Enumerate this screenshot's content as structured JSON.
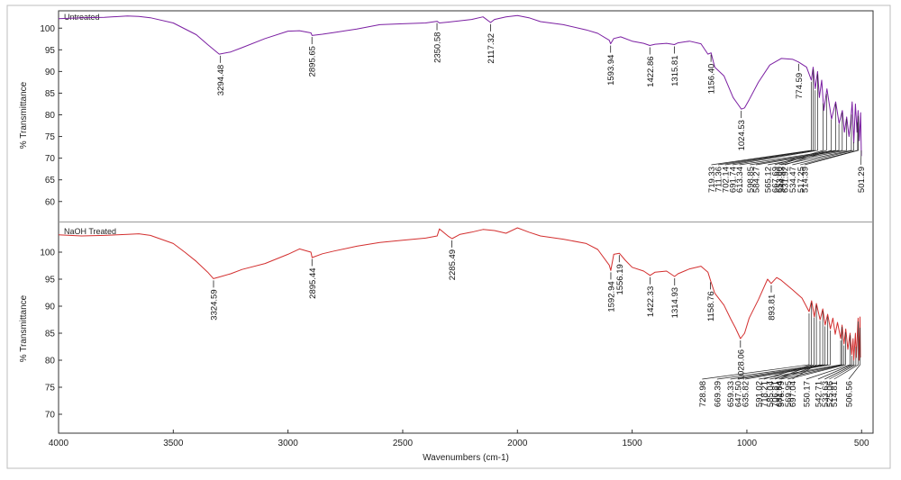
{
  "chart_data": [
    {
      "type": "line",
      "legend": "Untreated",
      "ylabel": "% Transmittance",
      "xlim": [
        4000,
        450
      ],
      "ylim": [
        56,
        104
      ],
      "yticks": [
        60,
        65,
        70,
        75,
        80,
        85,
        90,
        95,
        100
      ],
      "color": "#7b1fa2",
      "series": [
        {
          "name": "Untreated",
          "x": [
            4000,
            3900,
            3800,
            3700,
            3650,
            3600,
            3500,
            3400,
            3350,
            3300,
            3250,
            3200,
            3100,
            3000,
            2950,
            2900,
            2895,
            2850,
            2800,
            2700,
            2600,
            2500,
            2400,
            2350,
            2340,
            2300,
            2200,
            2150,
            2117,
            2100,
            2050,
            2000,
            1950,
            1900,
            1800,
            1700,
            1650,
            1600,
            1594,
            1580,
            1550,
            1500,
            1450,
            1423,
            1400,
            1350,
            1316,
            1300,
            1250,
            1200,
            1170,
            1156,
            1140,
            1100,
            1060,
            1040,
            1024,
            1010,
            990,
            950,
            900,
            850,
            800,
            775,
            740,
            719,
            711,
            702,
            692,
            684,
            674,
            665,
            651,
            631,
            613,
            598,
            584,
            575,
            565,
            555,
            548,
            541,
            534,
            527,
            520,
            515,
            510,
            504,
            501
          ],
          "y": [
            102.2,
            102.4,
            102.5,
            102.8,
            102.7,
            102.4,
            101.2,
            98.5,
            96.2,
            94.0,
            94.5,
            95.5,
            97.6,
            99.3,
            99.4,
            98.9,
            98.3,
            98.6,
            99.0,
            99.8,
            100.8,
            101.0,
            101.2,
            101.6,
            101.2,
            101.4,
            102.0,
            102.6,
            101.3,
            102.0,
            102.6,
            102.9,
            102.4,
            101.5,
            100.8,
            99.6,
            98.8,
            97.2,
            96.4,
            97.6,
            98.0,
            97.0,
            96.5,
            96.0,
            96.3,
            96.5,
            96.2,
            96.6,
            97.0,
            96.4,
            94.0,
            94.3,
            91.0,
            89.0,
            84.0,
            82.5,
            81.3,
            81.6,
            83.5,
            87.5,
            91.5,
            93.0,
            92.8,
            92.2,
            91.0,
            88.0,
            91.0,
            86.0,
            90.0,
            84.0,
            88.0,
            81.0,
            86.0,
            79.0,
            83.0,
            78.0,
            81.0,
            76.0,
            79.5,
            75.0,
            78.0,
            83.0,
            73.5,
            82.5,
            76.0,
            81.0,
            74.0,
            80.5,
            70.5
          ]
        }
      ],
      "annotations": [
        {
          "label": "3294.48",
          "x": 3294.48,
          "text_x": 3294.48
        },
        {
          "label": "2895.65",
          "x": 2895.65,
          "text_x": 2895.65
        },
        {
          "label": "2350.58",
          "x": 2350.58,
          "text_x": 2350.58
        },
        {
          "label": "2117.32",
          "x": 2117.32,
          "text_x": 2117.32
        },
        {
          "label": "1593.94",
          "x": 1593.94,
          "text_x": 1593.94
        },
        {
          "label": "1422.86",
          "x": 1422.86,
          "text_x": 1422.86
        },
        {
          "label": "1315.81",
          "x": 1315.81,
          "text_x": 1315.81
        },
        {
          "label": "1156.40",
          "x": 1156.4,
          "text_x": 1156.4
        },
        {
          "label": "1024.53",
          "x": 1024.53,
          "text_x": 1024.53
        },
        {
          "label": "774.59",
          "x": 774.59,
          "text_x": 774.59
        },
        {
          "label": "719.33",
          "x": 719.33,
          "text_x": 1155
        },
        {
          "label": "711.36",
          "x": 711.36,
          "text_x": 1125
        },
        {
          "label": "702.14",
          "x": 702.14,
          "text_x": 1095
        },
        {
          "label": "691.74",
          "x": 691.74,
          "text_x": 1063
        },
        {
          "label": "613.34",
          "x": 613.34,
          "text_x": 1033
        },
        {
          "label": "598.85",
          "x": 598.85,
          "text_x": 987
        },
        {
          "label": "584.27",
          "x": 584.27,
          "text_x": 960
        },
        {
          "label": "565.12",
          "x": 565.12,
          "text_x": 909
        },
        {
          "label": "544.53",
          "x": 544.53,
          "text_x": 850
        },
        {
          "label": "534.47",
          "x": 534.47,
          "text_x": 802
        },
        {
          "label": "501.29",
          "x": 501.29,
          "text_x": 503
        },
        {
          "label": "667.69",
          "x": 667.69,
          "text_x": 879
        },
        {
          "label": "653.00",
          "x": 653.0,
          "text_x": 860
        },
        {
          "label": "631.92",
          "x": 631.92,
          "text_x": 835
        },
        {
          "label": "517.25",
          "x": 517.25,
          "text_x": 767
        },
        {
          "label": "514.39",
          "x": 514.39,
          "text_x": 748
        }
      ]
    },
    {
      "type": "line",
      "legend": "NaOH Treated",
      "ylabel": "% Transmittance",
      "xlabel": "Wavenumbers (cm-1)",
      "xlim": [
        4000,
        450
      ],
      "ylim": [
        66.5,
        105
      ],
      "yticks": [
        70,
        75,
        80,
        85,
        90,
        95,
        100
      ],
      "xticks": [
        4000,
        3500,
        3000,
        2500,
        2000,
        1500,
        1000,
        500
      ],
      "color": "#d32f2f",
      "series": [
        {
          "name": "NaOH Treated",
          "x": [
            4000,
            3900,
            3800,
            3700,
            3650,
            3600,
            3500,
            3450,
            3400,
            3350,
            3325,
            3300,
            3250,
            3200,
            3100,
            3000,
            2950,
            2900,
            2895,
            2850,
            2800,
            2700,
            2600,
            2500,
            2400,
            2350,
            2340,
            2300,
            2285,
            2250,
            2200,
            2150,
            2100,
            2050,
            2000,
            1950,
            1900,
            1800,
            1700,
            1650,
            1600,
            1593,
            1580,
            1556,
            1530,
            1500,
            1450,
            1422,
            1400,
            1350,
            1315,
            1300,
            1250,
            1200,
            1170,
            1159,
            1140,
            1100,
            1070,
            1050,
            1028,
            1010,
            990,
            950,
            910,
            894,
            870,
            850,
            800,
            760,
            729,
            718,
            706,
            697,
            681,
            669,
            659,
            648,
            636,
            625,
            615,
            605,
            591,
            585,
            577,
            569,
            560,
            550,
            543,
            537,
            534,
            527,
            523,
            515,
            510,
            507,
            505
          ],
          "y": [
            103.2,
            103.0,
            103.1,
            103.3,
            103.4,
            103.1,
            101.6,
            100.0,
            98.3,
            96.3,
            95.1,
            95.4,
            96.0,
            96.8,
            97.9,
            99.6,
            100.6,
            100.0,
            99.0,
            99.7,
            100.2,
            101.1,
            101.8,
            102.2,
            102.6,
            103.0,
            104.3,
            102.9,
            102.5,
            103.3,
            103.7,
            104.2,
            104.0,
            103.5,
            104.5,
            103.7,
            103.0,
            102.4,
            101.6,
            100.5,
            97.6,
            96.6,
            99.6,
            99.8,
            98.5,
            97.2,
            96.5,
            95.7,
            96.3,
            96.5,
            95.5,
            96.0,
            96.9,
            97.4,
            96.3,
            94.8,
            92.4,
            90.2,
            87.6,
            86.0,
            84.0,
            85.0,
            87.8,
            91.2,
            95.0,
            94.2,
            95.3,
            94.8,
            93.0,
            91.5,
            89.0,
            91.0,
            88.0,
            90.5,
            87.5,
            89.5,
            86.5,
            88.5,
            85.8,
            87.8,
            84.8,
            87.0,
            84.0,
            86.5,
            83.0,
            85.8,
            82.0,
            85.0,
            81.0,
            84.0,
            80.0,
            85.0,
            80.5,
            87.8,
            80.0,
            88.0,
            80.5
          ]
        }
      ],
      "annotations": [
        {
          "label": "3324.59",
          "x": 3324.59,
          "text_x": 3324.59
        },
        {
          "label": "2895.44",
          "x": 2895.44,
          "text_x": 2895.44
        },
        {
          "label": "2285.49",
          "x": 2285.49,
          "text_x": 2285.49
        },
        {
          "label": "1592.94",
          "x": 1592.94,
          "text_x": 1592.94
        },
        {
          "label": "1556.19",
          "x": 1556.19,
          "text_x": 1556.19
        },
        {
          "label": "1422.33",
          "x": 1422.33,
          "text_x": 1422.33
        },
        {
          "label": "1314.93",
          "x": 1314.93,
          "text_x": 1314.93
        },
        {
          "label": "1158.76",
          "x": 1158.76,
          "text_x": 1158.76
        },
        {
          "label": "1028.06",
          "x": 1028.06,
          "text_x": 1028.06
        },
        {
          "label": "893.81",
          "x": 893.81,
          "text_x": 893.81
        },
        {
          "label": "728.98",
          "x": 728.98,
          "text_x": 1195
        },
        {
          "label": "669.39",
          "x": 669.39,
          "text_x": 1130
        },
        {
          "label": "659.33",
          "x": 659.33,
          "text_x": 1072
        },
        {
          "label": "647.50",
          "x": 647.5,
          "text_x": 1040
        },
        {
          "label": "635.82",
          "x": 635.82,
          "text_x": 1008
        },
        {
          "label": "591.02",
          "x": 591.02,
          "text_x": 948
        },
        {
          "label": "718.21",
          "x": 718.21,
          "text_x": 926
        },
        {
          "label": "585.04",
          "x": 585.04,
          "text_x": 900
        },
        {
          "label": "706.81",
          "x": 706.81,
          "text_x": 878
        },
        {
          "label": "576.79",
          "x": 576.79,
          "text_x": 852
        },
        {
          "label": "569.95",
          "x": 569.95,
          "text_x": 822
        },
        {
          "label": "697.04",
          "x": 697.04,
          "text_x": 802
        },
        {
          "label": "550.17",
          "x": 550.17,
          "text_x": 741
        },
        {
          "label": "533.63",
          "x": 533.63,
          "text_x": 661
        },
        {
          "label": "525.06",
          "x": 525.06,
          "text_x": 641
        },
        {
          "label": "681.64",
          "x": 681.64,
          "text_x": 860
        },
        {
          "label": "542.71",
          "x": 542.71,
          "text_x": 690
        },
        {
          "label": "514.81",
          "x": 514.81,
          "text_x": 620
        },
        {
          "label": "506.56",
          "x": 506.56,
          "text_x": 556
        }
      ]
    }
  ]
}
